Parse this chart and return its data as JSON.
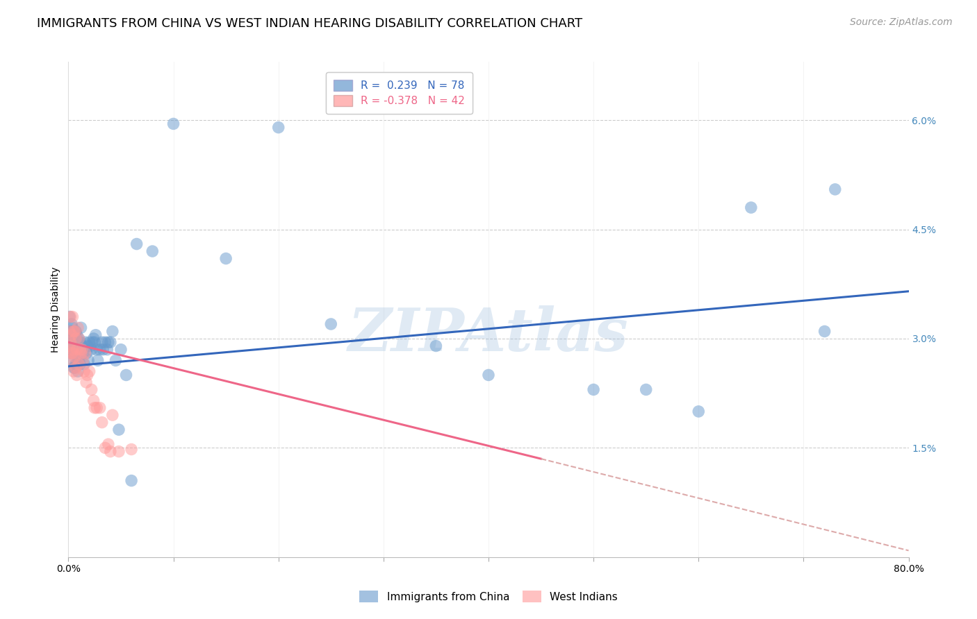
{
  "title": "IMMIGRANTS FROM CHINA VS WEST INDIAN HEARING DISABILITY CORRELATION CHART",
  "source": "Source: ZipAtlas.com",
  "ylabel": "Hearing Disability",
  "xlim": [
    0.0,
    0.8
  ],
  "ylim": [
    0.0,
    0.068
  ],
  "china_R": 0.239,
  "china_N": 78,
  "wi_R": -0.378,
  "wi_N": 42,
  "china_color": "#6699CC",
  "wi_color": "#FF9999",
  "china_line_color": "#3366BB",
  "wi_line_color": "#EE6688",
  "wi_line_dash_color": "#DDAAAA",
  "watermark": "ZIPAtlas",
  "watermark_color": "#99BBDD",
  "china_scatter_x": [
    0.001,
    0.001,
    0.002,
    0.002,
    0.002,
    0.003,
    0.003,
    0.003,
    0.003,
    0.004,
    0.004,
    0.004,
    0.004,
    0.005,
    0.005,
    0.005,
    0.005,
    0.006,
    0.006,
    0.006,
    0.006,
    0.007,
    0.007,
    0.007,
    0.008,
    0.008,
    0.008,
    0.009,
    0.009,
    0.01,
    0.01,
    0.011,
    0.011,
    0.012,
    0.012,
    0.013,
    0.014,
    0.015,
    0.016,
    0.017,
    0.018,
    0.019,
    0.02,
    0.021,
    0.022,
    0.023,
    0.024,
    0.025,
    0.026,
    0.027,
    0.028,
    0.03,
    0.032,
    0.033,
    0.035,
    0.037,
    0.038,
    0.04,
    0.042,
    0.045,
    0.048,
    0.05,
    0.055,
    0.06,
    0.065,
    0.08,
    0.1,
    0.15,
    0.2,
    0.25,
    0.35,
    0.4,
    0.5,
    0.55,
    0.6,
    0.65,
    0.72,
    0.73
  ],
  "china_scatter_y": [
    0.033,
    0.0295,
    0.031,
    0.0295,
    0.031,
    0.032,
    0.0295,
    0.029,
    0.028,
    0.0315,
    0.0295,
    0.027,
    0.03,
    0.031,
    0.028,
    0.026,
    0.03,
    0.0305,
    0.028,
    0.026,
    0.029,
    0.031,
    0.0265,
    0.0285,
    0.0305,
    0.0265,
    0.029,
    0.0285,
    0.0255,
    0.03,
    0.027,
    0.0295,
    0.0265,
    0.028,
    0.0315,
    0.029,
    0.028,
    0.0265,
    0.0295,
    0.028,
    0.029,
    0.027,
    0.0295,
    0.029,
    0.0285,
    0.0295,
    0.03,
    0.0295,
    0.0305,
    0.0285,
    0.027,
    0.0285,
    0.0295,
    0.0285,
    0.0295,
    0.0285,
    0.0295,
    0.0295,
    0.031,
    0.027,
    0.0175,
    0.0285,
    0.025,
    0.0105,
    0.043,
    0.042,
    0.0595,
    0.041,
    0.059,
    0.032,
    0.029,
    0.025,
    0.023,
    0.023,
    0.02,
    0.048,
    0.031,
    0.0505
  ],
  "wi_scatter_x": [
    0.001,
    0.001,
    0.002,
    0.002,
    0.003,
    0.003,
    0.003,
    0.004,
    0.004,
    0.005,
    0.005,
    0.005,
    0.006,
    0.006,
    0.007,
    0.007,
    0.008,
    0.008,
    0.009,
    0.01,
    0.01,
    0.011,
    0.012,
    0.013,
    0.014,
    0.015,
    0.016,
    0.017,
    0.018,
    0.02,
    0.022,
    0.024,
    0.025,
    0.027,
    0.03,
    0.032,
    0.035,
    0.038,
    0.04,
    0.042,
    0.048,
    0.06
  ],
  "wi_scatter_y": [
    0.031,
    0.029,
    0.033,
    0.0295,
    0.0305,
    0.028,
    0.027,
    0.033,
    0.0285,
    0.031,
    0.028,
    0.0255,
    0.031,
    0.0275,
    0.03,
    0.026,
    0.0285,
    0.025,
    0.0315,
    0.03,
    0.0265,
    0.0285,
    0.028,
    0.0285,
    0.027,
    0.0255,
    0.028,
    0.024,
    0.025,
    0.0255,
    0.023,
    0.0215,
    0.0205,
    0.0205,
    0.0205,
    0.0185,
    0.015,
    0.0155,
    0.0145,
    0.0195,
    0.0145,
    0.0148
  ],
  "china_line_x0": 0.0,
  "china_line_y0": 0.0262,
  "china_line_x1": 0.8,
  "china_line_y1": 0.0365,
  "wi_line_x0": 0.0,
  "wi_line_y0": 0.0295,
  "wi_line_x1": 0.45,
  "wi_line_y1": 0.0135,
  "wi_line_dash_x0": 0.45,
  "wi_line_dash_y0": 0.0135,
  "wi_line_dash_x1": 0.8,
  "wi_line_dash_y1": 0.0009,
  "title_fontsize": 13,
  "source_fontsize": 10,
  "axis_label_fontsize": 10,
  "tick_fontsize": 10,
  "legend_fontsize": 11
}
